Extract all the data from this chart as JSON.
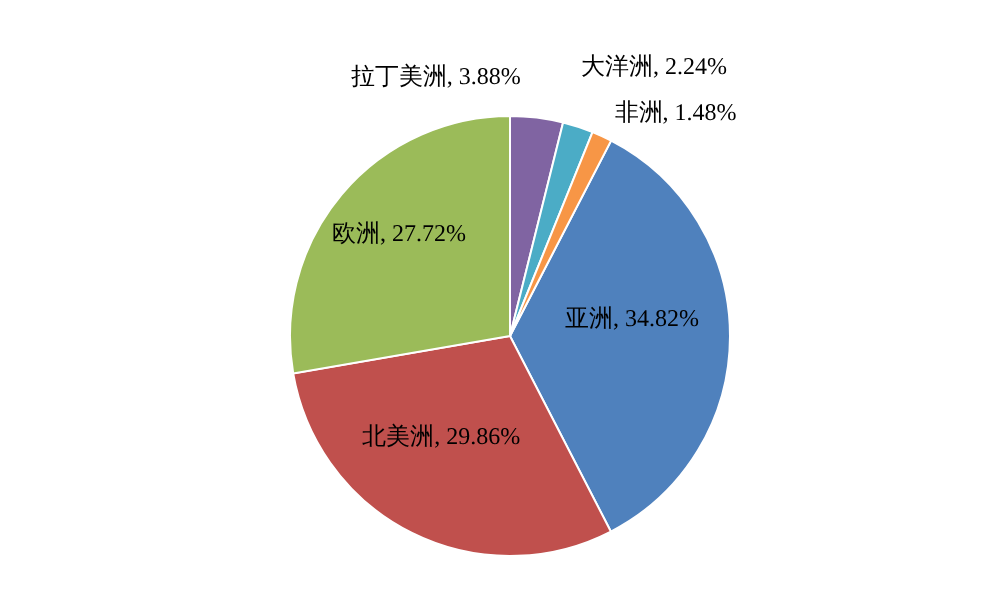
{
  "chart_data": {
    "type": "pie",
    "categories": [
      "亚洲",
      "北美洲",
      "欧洲",
      "拉丁美洲",
      "大洋洲",
      "非洲"
    ],
    "values": [
      34.82,
      29.86,
      27.72,
      3.88,
      2.24,
      1.48
    ],
    "value_labels": [
      "34.82%",
      "29.86%",
      "27.72%",
      "3.88%",
      "2.24%",
      "1.48%"
    ],
    "colors": [
      "#4f81bd",
      "#c0504d",
      "#9bbb59",
      "#8064a2",
      "#4bacc6",
      "#f79646"
    ],
    "legend": false
  }
}
